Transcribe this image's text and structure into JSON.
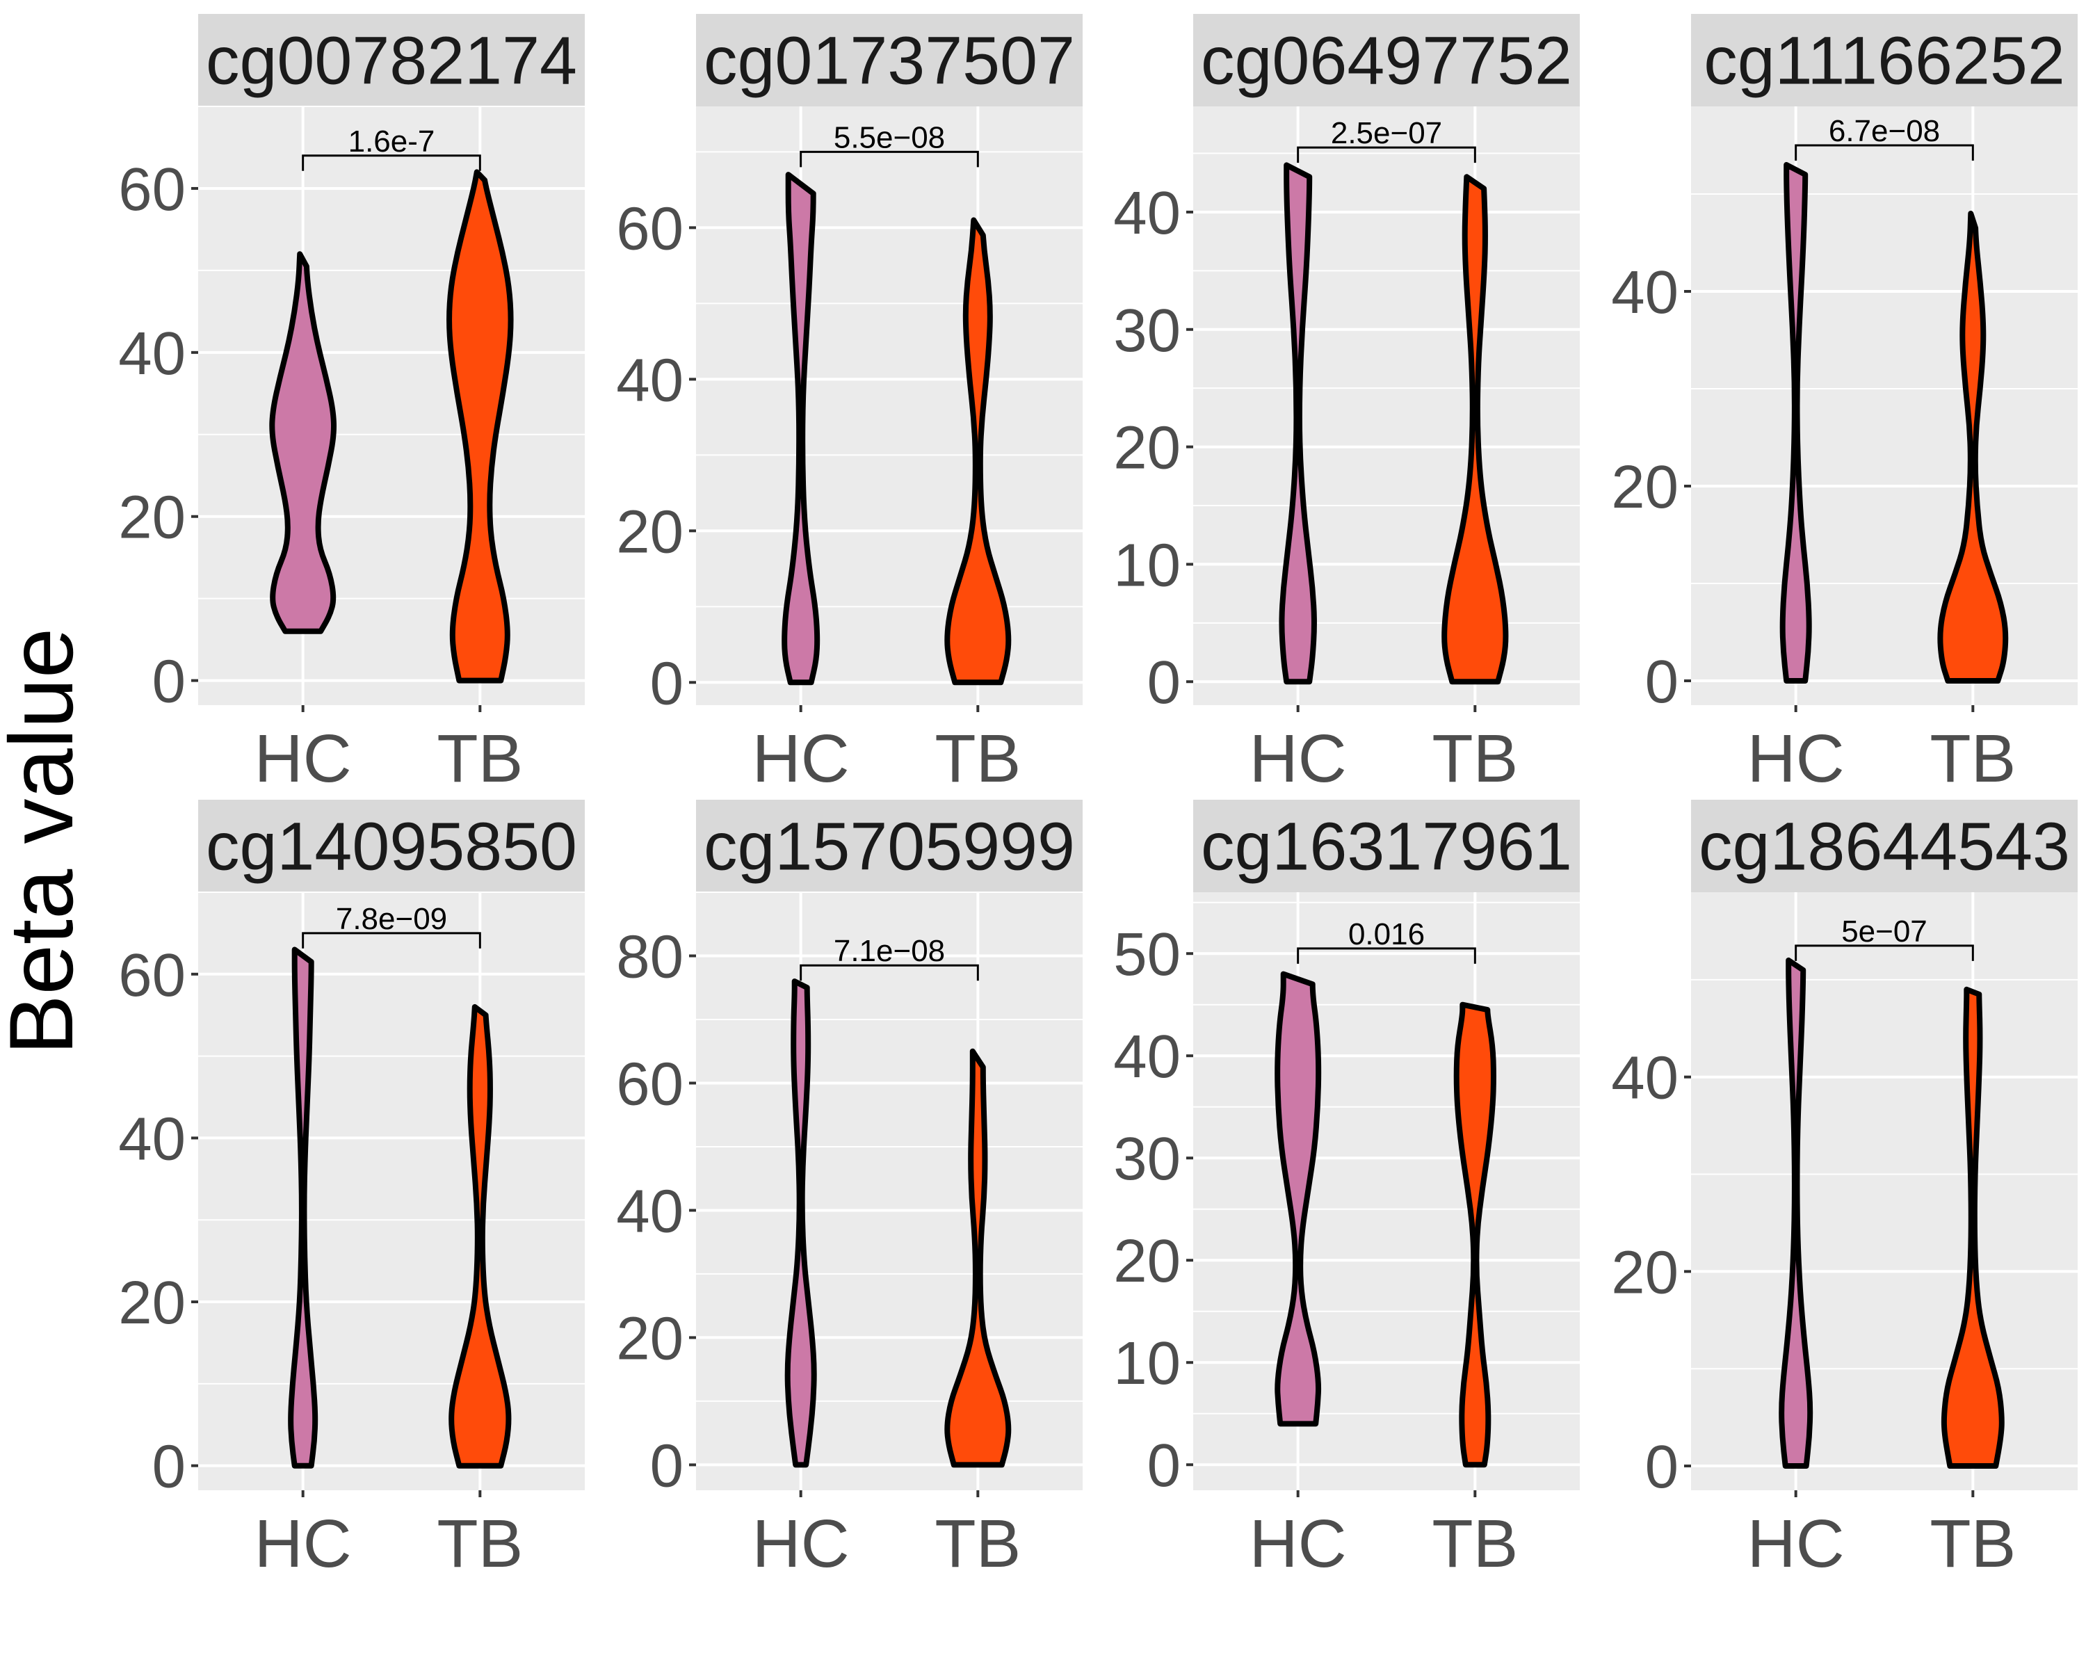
{
  "chart_data": [
    {
      "type": "violin",
      "title": "cg00782174",
      "categories": [
        "HC",
        "TB"
      ],
      "ylim": [
        -3,
        70
      ],
      "yticks": [
        0,
        20,
        40,
        60
      ],
      "pvalue": "1.6e-7",
      "bracket_y": 64,
      "violins": [
        {
          "name": "HC",
          "min": 6,
          "max": 52,
          "profile": [
            [
              6,
              0.17
            ],
            [
              8,
              0.26
            ],
            [
              10,
              0.3
            ],
            [
              13,
              0.26
            ],
            [
              16,
              0.16
            ],
            [
              19,
              0.14
            ],
            [
              22,
              0.17
            ],
            [
              26,
              0.24
            ],
            [
              30,
              0.3
            ],
            [
              33,
              0.29
            ],
            [
              37,
              0.22
            ],
            [
              41,
              0.14
            ],
            [
              45,
              0.08
            ],
            [
              49,
              0.04
            ],
            [
              52,
              0.03
            ]
          ]
        },
        {
          "name": "TB",
          "min": 0,
          "max": 62,
          "profile": [
            [
              0,
              0.2
            ],
            [
              3,
              0.25
            ],
            [
              6,
              0.27
            ],
            [
              10,
              0.23
            ],
            [
              14,
              0.15
            ],
            [
              18,
              0.1
            ],
            [
              22,
              0.09
            ],
            [
              26,
              0.11
            ],
            [
              30,
              0.15
            ],
            [
              35,
              0.22
            ],
            [
              40,
              0.28
            ],
            [
              44,
              0.3
            ],
            [
              48,
              0.28
            ],
            [
              52,
              0.22
            ],
            [
              56,
              0.14
            ],
            [
              60,
              0.06
            ],
            [
              62,
              0.03
            ]
          ]
        }
      ]
    },
    {
      "type": "violin",
      "title": "cg01737507",
      "categories": [
        "HC",
        "TB"
      ],
      "ylim": [
        -3,
        76
      ],
      "yticks": [
        0,
        20,
        40,
        60
      ],
      "pvalue": "5.5e−08",
      "bracket_y": 70,
      "violins": [
        {
          "name": "HC",
          "min": 0,
          "max": 67,
          "profile": [
            [
              0,
              0.1
            ],
            [
              3,
              0.15
            ],
            [
              6,
              0.16
            ],
            [
              10,
              0.14
            ],
            [
              15,
              0.08
            ],
            [
              22,
              0.03
            ],
            [
              30,
              0.015
            ],
            [
              38,
              0.02
            ],
            [
              45,
              0.05
            ],
            [
              52,
              0.08
            ],
            [
              58,
              0.1
            ],
            [
              62,
              0.12
            ],
            [
              67,
              0.12
            ]
          ]
        },
        {
          "name": "TB",
          "min": 0,
          "max": 61,
          "profile": [
            [
              0,
              0.22
            ],
            [
              3,
              0.28
            ],
            [
              6,
              0.3
            ],
            [
              10,
              0.26
            ],
            [
              14,
              0.17
            ],
            [
              18,
              0.08
            ],
            [
              23,
              0.03
            ],
            [
              30,
              0.02
            ],
            [
              35,
              0.04
            ],
            [
              40,
              0.08
            ],
            [
              45,
              0.11
            ],
            [
              49,
              0.12
            ],
            [
              53,
              0.1
            ],
            [
              57,
              0.06
            ],
            [
              61,
              0.04
            ]
          ]
        }
      ]
    },
    {
      "type": "violin",
      "title": "cg06497752",
      "categories": [
        "HC",
        "TB"
      ],
      "ylim": [
        -2,
        49
      ],
      "yticks": [
        0,
        10,
        20,
        30,
        40
      ],
      "pvalue": "2.5e−07",
      "bracket_y": 45.5,
      "violins": [
        {
          "name": "HC",
          "min": 0,
          "max": 44,
          "profile": [
            [
              0,
              0.11
            ],
            [
              2,
              0.14
            ],
            [
              5,
              0.16
            ],
            [
              8,
              0.14
            ],
            [
              11,
              0.1
            ],
            [
              15,
              0.05
            ],
            [
              20,
              0.015
            ],
            [
              25,
              0.015
            ],
            [
              30,
              0.04
            ],
            [
              35,
              0.08
            ],
            [
              39,
              0.1
            ],
            [
              42,
              0.11
            ],
            [
              44,
              0.11
            ]
          ]
        },
        {
          "name": "TB",
          "min": 0,
          "max": 43,
          "profile": [
            [
              0,
              0.22
            ],
            [
              2,
              0.28
            ],
            [
              4,
              0.3
            ],
            [
              7,
              0.27
            ],
            [
              10,
              0.2
            ],
            [
              13,
              0.12
            ],
            [
              17,
              0.05
            ],
            [
              22,
              0.02
            ],
            [
              27,
              0.03
            ],
            [
              31,
              0.06
            ],
            [
              35,
              0.09
            ],
            [
              38,
              0.1
            ],
            [
              41,
              0.09
            ],
            [
              43,
              0.08
            ]
          ]
        }
      ]
    },
    {
      "type": "violin",
      "title": "cg11166252",
      "categories": [
        "HC",
        "TB"
      ],
      "ylim": [
        -2.5,
        59
      ],
      "yticks": [
        0,
        20,
        40
      ],
      "pvalue": "6.7e−08",
      "bracket_y": 55,
      "violins": [
        {
          "name": "HC",
          "min": 0,
          "max": 53,
          "profile": [
            [
              0,
              0.09
            ],
            [
              3,
              0.12
            ],
            [
              6,
              0.13
            ],
            [
              10,
              0.11
            ],
            [
              14,
              0.07
            ],
            [
              18,
              0.04
            ],
            [
              24,
              0.015
            ],
            [
              30,
              0.01
            ],
            [
              36,
              0.03
            ],
            [
              42,
              0.06
            ],
            [
              47,
              0.08
            ],
            [
              51,
              0.09
            ],
            [
              53,
              0.09
            ]
          ]
        },
        {
          "name": "TB",
          "min": 0,
          "max": 48,
          "profile": [
            [
              0,
              0.24
            ],
            [
              2,
              0.3
            ],
            [
              5,
              0.32
            ],
            [
              8,
              0.27
            ],
            [
              11,
              0.17
            ],
            [
              14,
              0.08
            ],
            [
              18,
              0.04
            ],
            [
              22,
              0.02
            ],
            [
              26,
              0.03
            ],
            [
              30,
              0.07
            ],
            [
              34,
              0.1
            ],
            [
              37,
              0.1
            ],
            [
              41,
              0.07
            ],
            [
              45,
              0.03
            ],
            [
              48,
              0.02
            ]
          ]
        }
      ]
    },
    {
      "type": "violin",
      "title": "cg14095850",
      "categories": [
        "HC",
        "TB"
      ],
      "ylim": [
        -3,
        70
      ],
      "yticks": [
        0,
        20,
        40,
        60
      ],
      "pvalue": "7.8e−09",
      "bracket_y": 65,
      "violins": [
        {
          "name": "HC",
          "min": 0,
          "max": 63,
          "profile": [
            [
              0,
              0.08
            ],
            [
              3,
              0.11
            ],
            [
              6,
              0.12
            ],
            [
              10,
              0.1
            ],
            [
              14,
              0.07
            ],
            [
              20,
              0.03
            ],
            [
              26,
              0.015
            ],
            [
              32,
              0.01
            ],
            [
              38,
              0.02
            ],
            [
              44,
              0.04
            ],
            [
              50,
              0.06
            ],
            [
              55,
              0.07
            ],
            [
              60,
              0.08
            ],
            [
              63,
              0.08
            ]
          ]
        },
        {
          "name": "TB",
          "min": 0,
          "max": 56,
          "profile": [
            [
              0,
              0.2
            ],
            [
              3,
              0.26
            ],
            [
              6,
              0.28
            ],
            [
              9,
              0.25
            ],
            [
              13,
              0.17
            ],
            [
              17,
              0.09
            ],
            [
              21,
              0.04
            ],
            [
              27,
              0.02
            ],
            [
              32,
              0.03
            ],
            [
              37,
              0.06
            ],
            [
              42,
              0.09
            ],
            [
              46,
              0.1
            ],
            [
              50,
              0.09
            ],
            [
              54,
              0.06
            ],
            [
              56,
              0.05
            ]
          ]
        }
      ]
    },
    {
      "type": "violin",
      "title": "cg15705999",
      "categories": [
        "HC",
        "TB"
      ],
      "ylim": [
        -4,
        90
      ],
      "yticks": [
        0,
        20,
        40,
        60,
        80
      ],
      "pvalue": "7.1e−08",
      "bracket_y": 78.5,
      "violins": [
        {
          "name": "HC",
          "min": 0,
          "max": 76,
          "profile": [
            [
              0,
              0.05
            ],
            [
              5,
              0.09
            ],
            [
              10,
              0.12
            ],
            [
              15,
              0.13
            ],
            [
              20,
              0.11
            ],
            [
              26,
              0.07
            ],
            [
              32,
              0.03
            ],
            [
              40,
              0.01
            ],
            [
              48,
              0.02
            ],
            [
              56,
              0.05
            ],
            [
              63,
              0.07
            ],
            [
              69,
              0.07
            ],
            [
              74,
              0.06
            ],
            [
              76,
              0.06
            ]
          ]
        },
        {
          "name": "TB",
          "min": 0,
          "max": 65,
          "profile": [
            [
              0,
              0.23
            ],
            [
              3,
              0.28
            ],
            [
              6,
              0.3
            ],
            [
              10,
              0.26
            ],
            [
              14,
              0.17
            ],
            [
              19,
              0.07
            ],
            [
              24,
              0.03
            ],
            [
              30,
              0.02
            ],
            [
              36,
              0.03
            ],
            [
              42,
              0.06
            ],
            [
              48,
              0.07
            ],
            [
              54,
              0.06
            ],
            [
              60,
              0.05
            ],
            [
              65,
              0.05
            ]
          ]
        }
      ]
    },
    {
      "type": "violin",
      "title": "cg16317961",
      "categories": [
        "HC",
        "TB"
      ],
      "ylim": [
        -2.5,
        56
      ],
      "yticks": [
        0,
        10,
        20,
        30,
        40,
        50
      ],
      "pvalue": "0.016",
      "bracket_y": 50.5,
      "violins": [
        {
          "name": "HC",
          "min": 4,
          "max": 48,
          "profile": [
            [
              4,
              0.17
            ],
            [
              6,
              0.19
            ],
            [
              8,
              0.2
            ],
            [
              11,
              0.16
            ],
            [
              14,
              0.08
            ],
            [
              17,
              0.03
            ],
            [
              20,
              0.02
            ],
            [
              23,
              0.04
            ],
            [
              27,
              0.1
            ],
            [
              31,
              0.16
            ],
            [
              35,
              0.19
            ],
            [
              39,
              0.2
            ],
            [
              43,
              0.18
            ],
            [
              46,
              0.14
            ],
            [
              48,
              0.14
            ]
          ]
        },
        {
          "name": "TB",
          "min": 0,
          "max": 45,
          "profile": [
            [
              0,
              0.09
            ],
            [
              2,
              0.12
            ],
            [
              5,
              0.13
            ],
            [
              8,
              0.11
            ],
            [
              11,
              0.07
            ],
            [
              15,
              0.04
            ],
            [
              19,
              0.01
            ],
            [
              23,
              0.02
            ],
            [
              27,
              0.07
            ],
            [
              31,
              0.13
            ],
            [
              35,
              0.17
            ],
            [
              38,
              0.18
            ],
            [
              41,
              0.17
            ],
            [
              44,
              0.12
            ],
            [
              45,
              0.12
            ]
          ]
        }
      ]
    },
    {
      "type": "violin",
      "title": "cg18644543",
      "categories": [
        "HC",
        "TB"
      ],
      "ylim": [
        -2.5,
        59
      ],
      "yticks": [
        0,
        20,
        40
      ],
      "pvalue": "5e−07",
      "bracket_y": 53.5,
      "violins": [
        {
          "name": "HC",
          "min": 0,
          "max": 52,
          "profile": [
            [
              0,
              0.1
            ],
            [
              3,
              0.13
            ],
            [
              6,
              0.14
            ],
            [
              9,
              0.12
            ],
            [
              13,
              0.08
            ],
            [
              18,
              0.04
            ],
            [
              24,
              0.015
            ],
            [
              30,
              0.01
            ],
            [
              36,
              0.02
            ],
            [
              41,
              0.04
            ],
            [
              46,
              0.06
            ],
            [
              50,
              0.07
            ],
            [
              52,
              0.07
            ]
          ]
        },
        {
          "name": "TB",
          "min": 0,
          "max": 49,
          "profile": [
            [
              0,
              0.22
            ],
            [
              3,
              0.27
            ],
            [
              5,
              0.28
            ],
            [
              8,
              0.25
            ],
            [
              11,
              0.17
            ],
            [
              15,
              0.07
            ],
            [
              19,
              0.03
            ],
            [
              24,
              0.015
            ],
            [
              30,
              0.02
            ],
            [
              35,
              0.04
            ],
            [
              40,
              0.06
            ],
            [
              44,
              0.07
            ],
            [
              48,
              0.06
            ],
            [
              49,
              0.06
            ]
          ]
        }
      ]
    }
  ],
  "ylabel": "Beta value",
  "colors": {
    "HC": "#cc79a7",
    "TB": "#ff4b0a",
    "panel_bg": "#ebebeb",
    "strip_bg": "#d9d9d9",
    "grid": "#ffffff"
  }
}
